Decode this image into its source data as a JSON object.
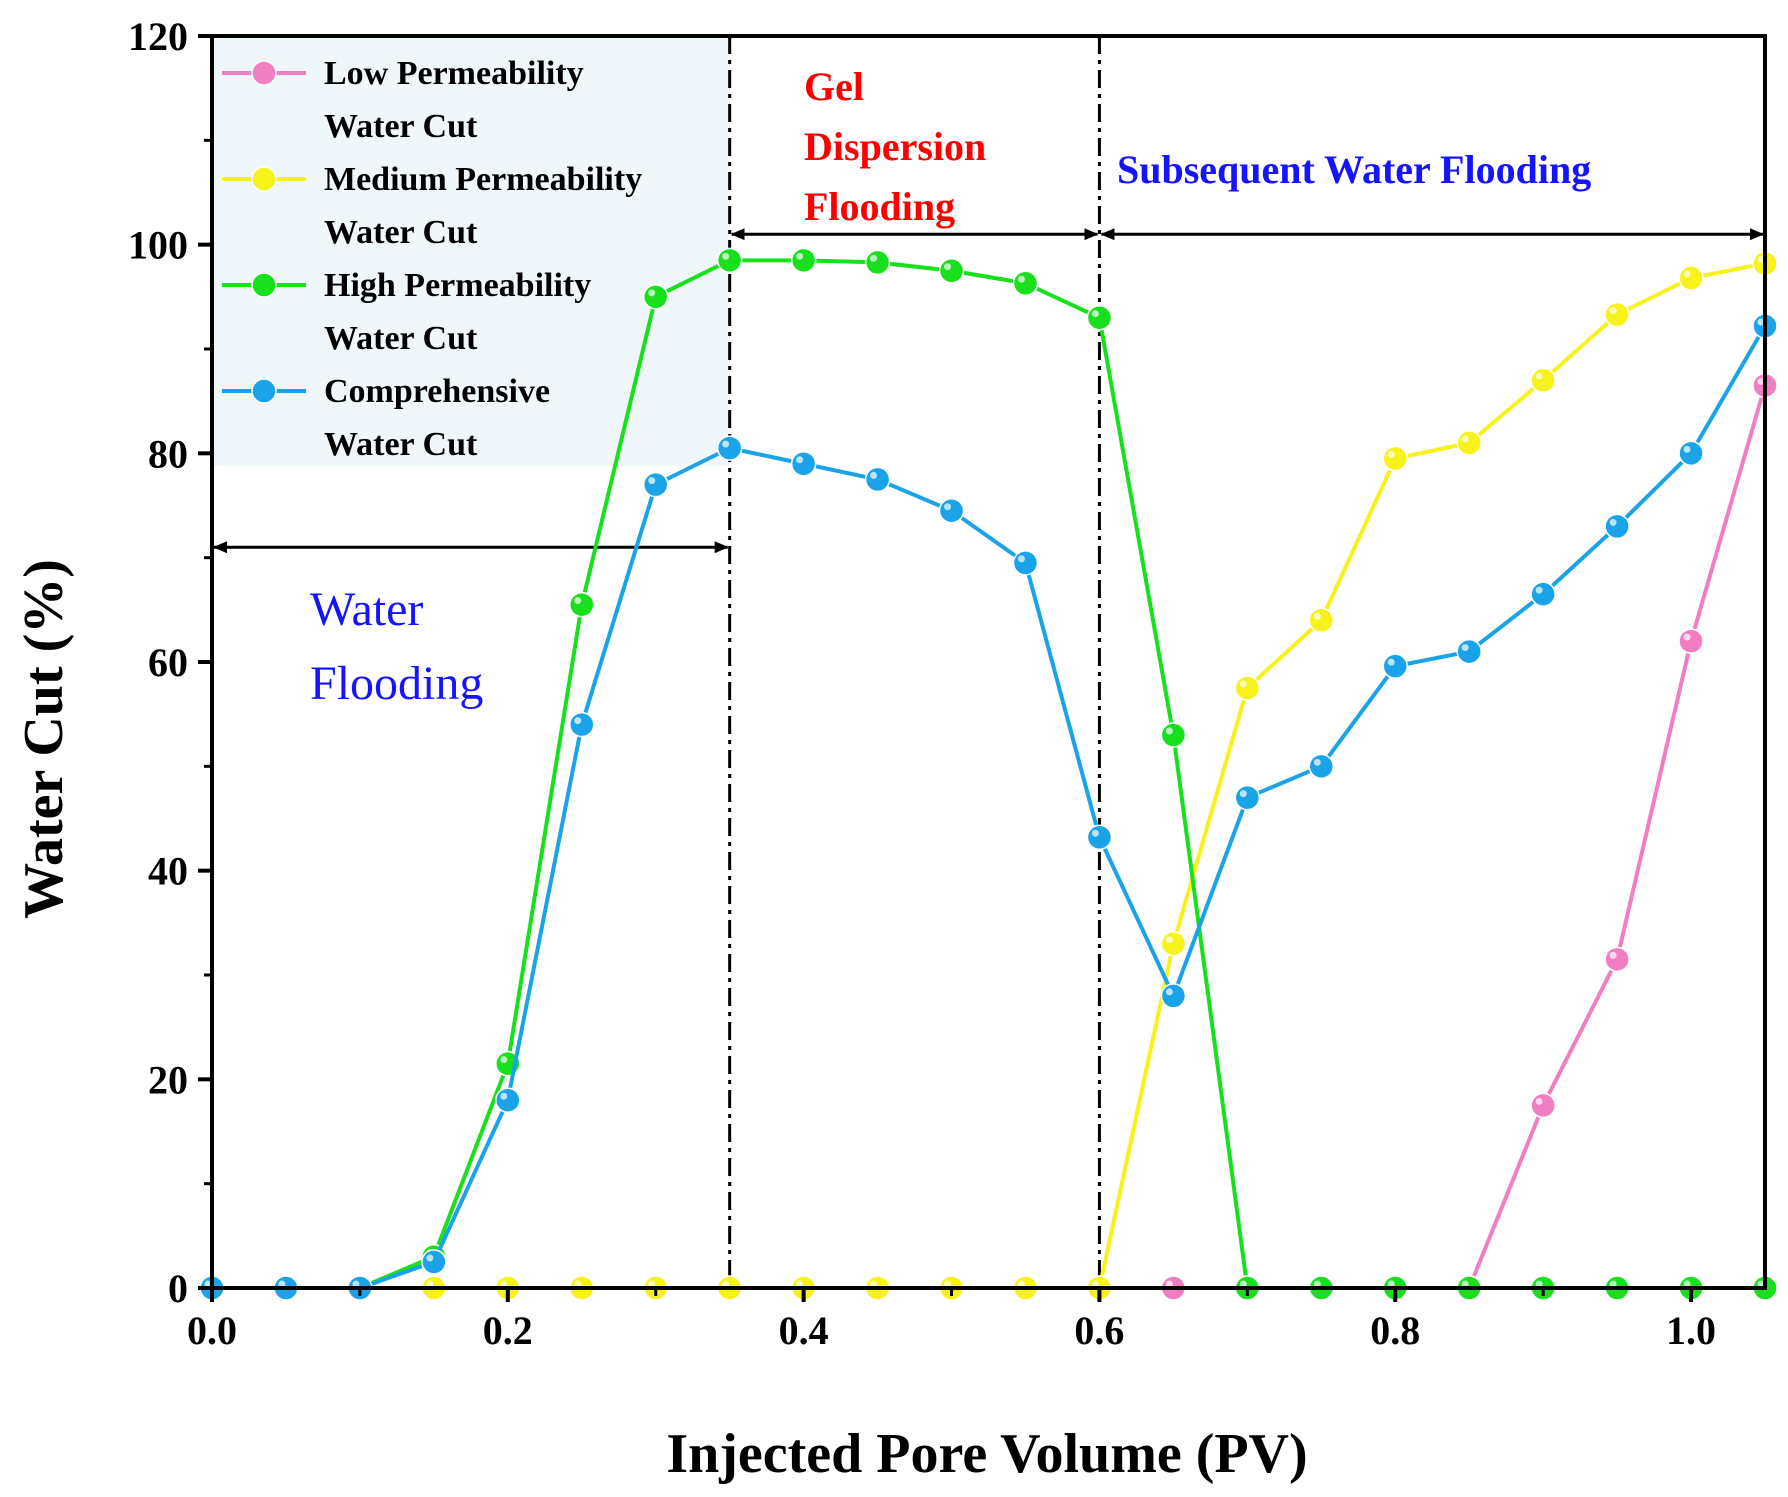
{
  "chart_data": {
    "type": "line",
    "xlabel": "Injected Pore Volume (PV)",
    "ylabel": "Water Cut (%)",
    "xlim": [
      0,
      1.05
    ],
    "ylim": [
      0,
      120
    ],
    "xticks": [
      0.0,
      0.2,
      0.4,
      0.6,
      0.8,
      1.0
    ],
    "xtick_labels": [
      "0.0",
      "0.2",
      "0.4",
      "0.6",
      "0.8",
      "1.0"
    ],
    "yticks": [
      0,
      20,
      40,
      60,
      80,
      100,
      120
    ],
    "ytick_labels": [
      "0",
      "20",
      "40",
      "60",
      "80",
      "100",
      "120"
    ],
    "x": [
      0.0,
      0.05,
      0.1,
      0.15,
      0.2,
      0.25,
      0.3,
      0.35,
      0.4,
      0.45,
      0.5,
      0.55,
      0.6,
      0.65,
      0.7,
      0.75,
      0.8,
      0.85,
      0.9,
      0.95,
      1.0,
      1.05
    ],
    "series": [
      {
        "name": "Low Permeability Water Cut",
        "legend_lines": [
          "Low Permeability",
          "Water Cut"
        ],
        "color": "#f27ec2",
        "values": [
          0,
          0,
          0,
          0,
          0,
          0,
          0,
          0,
          0,
          0,
          0,
          0,
          0,
          0,
          0,
          0,
          0,
          0,
          17.5,
          31.5,
          62,
          86.5
        ]
      },
      {
        "name": "Medium Permeability Water Cut",
        "legend_lines": [
          "Medium Permeability",
          "Water Cut"
        ],
        "color": "#f7f21a",
        "values": [
          0,
          0,
          0,
          0,
          0,
          0,
          0,
          0,
          0,
          0,
          0,
          0,
          0,
          33,
          57.5,
          64,
          79.5,
          81,
          87,
          93.3,
          96.8,
          98.2
        ]
      },
      {
        "name": "High Permeability Water Cut",
        "legend_lines": [
          "High Permeability",
          "Water Cut"
        ],
        "color": "#18e01c",
        "values": [
          0,
          0,
          0,
          3,
          21.5,
          65.5,
          95,
          98.5,
          98.5,
          98.3,
          97.5,
          96.3,
          93,
          53,
          0,
          0,
          0,
          0,
          0,
          0,
          0,
          0
        ]
      },
      {
        "name": "Comprehensive Water Cut",
        "legend_lines": [
          "Comprehensive",
          "Water Cut"
        ],
        "color": "#1aa3e8",
        "values": [
          0,
          0,
          0,
          2.5,
          18,
          54,
          77,
          80.5,
          79,
          77.5,
          74.5,
          69.5,
          43.2,
          28,
          47,
          50,
          59.6,
          61,
          66.5,
          73,
          80,
          92.2
        ]
      }
    ],
    "phases": [
      {
        "label_lines": [
          "Water",
          "Flooding"
        ],
        "from": 0.0,
        "to": 0.35,
        "arrow_y": 71,
        "color": "#1414ff"
      },
      {
        "label_lines": [
          "Gel",
          "Dispersion",
          "Flooding"
        ],
        "from": 0.35,
        "to": 0.6,
        "arrow_y": 101,
        "color": "#ff0000"
      },
      {
        "label_lines": [
          "Subsequent Water Flooding"
        ],
        "from": 0.6,
        "to": 1.05,
        "arrow_y": 101,
        "color": "#1414ff"
      }
    ],
    "boundaries": [
      0.35,
      0.6
    ],
    "legend": "top-left",
    "grid": false,
    "colors": {
      "legend_bg": "#f0f7fb",
      "axis": "#000000"
    }
  }
}
